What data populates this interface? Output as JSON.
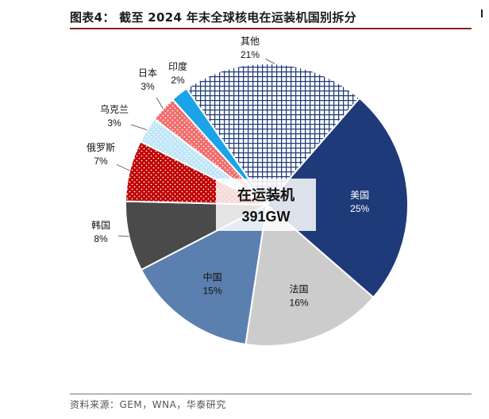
{
  "title": "图表4： 截至 2024 年末全球核电在运装机国别拆分",
  "footer": "资料来源：GEM，WNA，华泰研究",
  "center_label": {
    "line1": "在运装机",
    "line2": "391GW"
  },
  "chart_data": {
    "type": "pie",
    "slices": [
      {
        "label": "美国",
        "value": 25,
        "pct": "25%",
        "color": "#1f3a78",
        "pattern": "solid"
      },
      {
        "label": "法国",
        "value": 16,
        "pct": "16%",
        "color": "#cccccc",
        "pattern": "solid"
      },
      {
        "label": "中国",
        "value": 15,
        "pct": "15%",
        "color": "#5b7fae",
        "pattern": "solid"
      },
      {
        "label": "韩国",
        "value": 8,
        "pct": "8%",
        "color": "#4a4a4a",
        "pattern": "solid"
      },
      {
        "label": "俄罗斯",
        "value": 7,
        "pct": "7%",
        "color": "#c00000",
        "pattern": "dots-white-on-red"
      },
      {
        "label": "乌克兰",
        "value": 3,
        "pct": "3%",
        "color": "#bfe6f7",
        "pattern": "dots-white-on-lightblue"
      },
      {
        "label": "日本",
        "value": 3,
        "pct": "3%",
        "color": "#f26b6b",
        "pattern": "dots-white-on-salmon"
      },
      {
        "label": "印度",
        "value": 2,
        "pct": "2%",
        "color": "#1aa3e8",
        "pattern": "solid"
      },
      {
        "label": "其他",
        "value": 21,
        "pct": "21%",
        "color": "#1f3a78",
        "pattern": "grid-blue-on-white"
      }
    ]
  }
}
